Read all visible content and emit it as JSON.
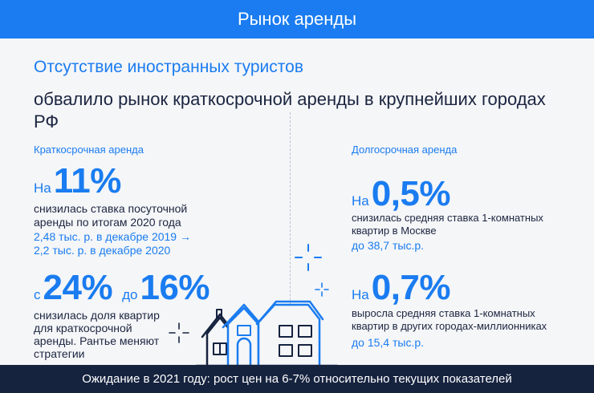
{
  "header": {
    "title": "Рынок аренды"
  },
  "subtitle": "Отсутствие иностранных туристов",
  "title": "обвалило рынок краткосрочной аренды в крупнейших городах РФ",
  "short_term": {
    "label": "Краткосрочная аренда",
    "stat1": {
      "prefix": "На",
      "value": "11%",
      "desc_line1": "снизилась ставка посуточной",
      "desc_line2": "аренды по итогам 2020 года",
      "detail_line1": "2,48 тыс. р. в декабре 2019 →",
      "detail_line2": "2,2 тыс. р. в декабре 2020"
    },
    "stat2": {
      "prefix_from": "с",
      "value_from": "24%",
      "prefix_to": "до",
      "value_to": "16%",
      "desc_line1": "снизилась доля квартир",
      "desc_line2": "для краткосрочной",
      "desc_line3": "аренды. Рантье меняют",
      "desc_line4": "стратегии"
    }
  },
  "long_term": {
    "label": "Долгосрочная аренда",
    "stat1": {
      "prefix": "На",
      "value": "0,5%",
      "desc_line1": "снизилась средняя ставка 1-комнатных",
      "desc_line2": "квартир в Москве",
      "detail": "до 38,7 тыс.р."
    },
    "stat2": {
      "prefix": "На",
      "value": "0,7%",
      "desc_line1": "выросла средняя ставка 1-комнатных",
      "desc_line2": "квартир в других городах-миллионниках",
      "detail": "до 15,4 тыс.р."
    }
  },
  "footer": {
    "text": "Ожидание в 2021 году: рост цен на 6-7% относительно текущих показателей"
  },
  "colors": {
    "accent": "#1a7cf0",
    "dark": "#16233f",
    "background": "#f5f6f8"
  }
}
